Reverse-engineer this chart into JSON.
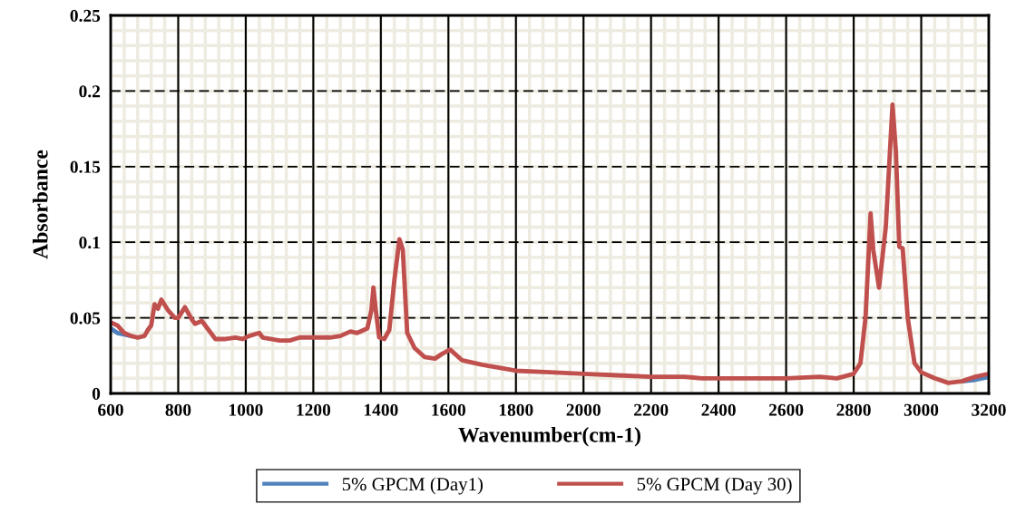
{
  "chart_data": {
    "type": "line",
    "xlabel": "Wavenumber(cm-1)",
    "ylabel": "Absorbance",
    "xlim": [
      600,
      3200
    ],
    "xticks": [
      600,
      800,
      1000,
      1200,
      1400,
      1600,
      1800,
      2000,
      2200,
      2400,
      2600,
      2800,
      3000,
      3200
    ],
    "ylim": [
      0,
      0.25
    ],
    "yticks": [
      0,
      0.05,
      0.1,
      0.15,
      0.2,
      0.25
    ],
    "grid": true,
    "legend": "bottom",
    "marker": "none",
    "line_style": "solid",
    "series": [
      {
        "name": "5% GPCM (Day1)",
        "color": "#4f81bd",
        "x": [
          600,
          620,
          640,
          660,
          680,
          700,
          710,
          720,
          730,
          740,
          750,
          770,
          790,
          800,
          820,
          840,
          850,
          870,
          890,
          910,
          940,
          970,
          990,
          1010,
          1040,
          1050,
          1100,
          1130,
          1160,
          1200,
          1250,
          1280,
          1310,
          1330,
          1360,
          1372,
          1378,
          1385,
          1395,
          1410,
          1425,
          1440,
          1455,
          1465,
          1478,
          1500,
          1530,
          1560,
          1580,
          1605,
          1640,
          1700,
          1750,
          1800,
          1900,
          2000,
          2100,
          2200,
          2300,
          2350,
          2400,
          2500,
          2600,
          2700,
          2750,
          2800,
          2820,
          2835,
          2850,
          2858,
          2875,
          2895,
          2915,
          2925,
          2935,
          2945,
          2960,
          2980,
          3000,
          3040,
          3080,
          3120,
          3160,
          3200
        ],
        "values": [
          0.043,
          0.04,
          0.039,
          0.038,
          null,
          null,
          null,
          null,
          null,
          null,
          null,
          null,
          null,
          null,
          null,
          null,
          null,
          null,
          null,
          null,
          null,
          null,
          null,
          null,
          null,
          null,
          null,
          null,
          null,
          null,
          null,
          null,
          null,
          null,
          null,
          null,
          null,
          null,
          null,
          null,
          null,
          null,
          null,
          null,
          null,
          null,
          null,
          null,
          null,
          null,
          null,
          null,
          null,
          null,
          null,
          null,
          null,
          null,
          null,
          null,
          null,
          null,
          null,
          null,
          null,
          null,
          null,
          null,
          null,
          null,
          null,
          null,
          null,
          null,
          null,
          null,
          null,
          null,
          null,
          null,
          null,
          0.008,
          0.009,
          0.011
        ]
      },
      {
        "name": "5% GPCM (Day 30)",
        "color": "#c0504d",
        "x": [
          600,
          620,
          640,
          660,
          680,
          700,
          710,
          720,
          730,
          740,
          750,
          770,
          790,
          800,
          820,
          840,
          850,
          870,
          890,
          910,
          940,
          970,
          990,
          1010,
          1040,
          1050,
          1100,
          1130,
          1160,
          1200,
          1250,
          1280,
          1310,
          1330,
          1360,
          1372,
          1378,
          1385,
          1395,
          1410,
          1425,
          1440,
          1455,
          1465,
          1478,
          1500,
          1530,
          1560,
          1580,
          1605,
          1640,
          1700,
          1750,
          1800,
          1900,
          2000,
          2100,
          2200,
          2300,
          2350,
          2400,
          2500,
          2600,
          2700,
          2750,
          2800,
          2820,
          2835,
          2850,
          2858,
          2875,
          2895,
          2915,
          2925,
          2935,
          2945,
          2960,
          2980,
          3000,
          3040,
          3080,
          3120,
          3160,
          3200
        ],
        "values": [
          0.047,
          0.045,
          0.04,
          0.038,
          0.037,
          0.038,
          0.042,
          0.045,
          0.059,
          0.056,
          0.062,
          0.055,
          0.05,
          0.05,
          0.057,
          0.049,
          0.046,
          0.048,
          0.042,
          0.036,
          0.036,
          0.037,
          0.036,
          0.038,
          0.04,
          0.037,
          0.035,
          0.035,
          0.037,
          0.037,
          0.037,
          0.038,
          0.041,
          0.04,
          0.043,
          0.055,
          0.07,
          0.055,
          0.037,
          0.036,
          0.042,
          0.075,
          0.102,
          0.095,
          0.04,
          0.03,
          0.024,
          0.023,
          0.026,
          0.029,
          0.022,
          0.019,
          0.017,
          0.015,
          0.014,
          0.013,
          0.012,
          0.011,
          0.011,
          0.01,
          0.01,
          0.01,
          0.01,
          0.011,
          0.01,
          0.013,
          0.02,
          0.05,
          0.119,
          0.095,
          0.07,
          0.11,
          0.191,
          0.16,
          0.097,
          0.096,
          0.05,
          0.02,
          0.014,
          0.01,
          0.007,
          0.008,
          0.011,
          0.013
        ]
      }
    ]
  }
}
